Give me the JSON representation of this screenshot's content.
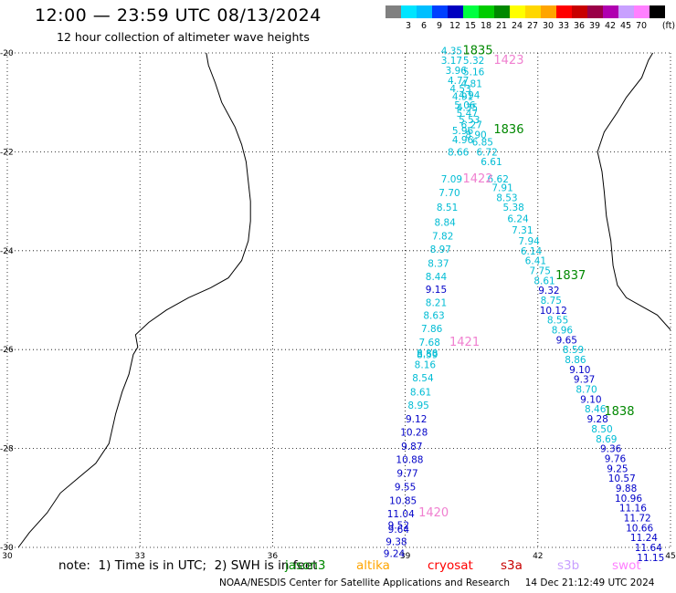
{
  "header": {
    "title": "12:00 — 23:59 UTC 08/13/2024",
    "subtitle": "12 hour collection of altimeter wave heights"
  },
  "legend": {
    "unit": "(ft)",
    "bins": [
      {
        "color": "#808080",
        "label": ""
      },
      {
        "color": "#00e5ff",
        "label": "3"
      },
      {
        "color": "#00bfff",
        "label": "6"
      },
      {
        "color": "#0040ff",
        "label": "9"
      },
      {
        "color": "#0000c0",
        "label": "12"
      },
      {
        "color": "#00ff40",
        "label": "15"
      },
      {
        "color": "#00cc00",
        "label": "18"
      },
      {
        "color": "#008800",
        "label": "21"
      },
      {
        "color": "#ffff00",
        "label": "24"
      },
      {
        "color": "#ffd700",
        "label": "27"
      },
      {
        "color": "#ffa500",
        "label": "30"
      },
      {
        "color": "#ff0000",
        "label": "33"
      },
      {
        "color": "#c80000",
        "label": "36"
      },
      {
        "color": "#9a0048",
        "label": "39"
      },
      {
        "color": "#b000b0",
        "label": "42"
      },
      {
        "color": "#c8a0ff",
        "label": "45"
      },
      {
        "color": "#ff80ff",
        "label": "70"
      },
      {
        "color": "#000000",
        "label": ""
      }
    ]
  },
  "axes": {
    "lat_labels": [
      "-20",
      "-22",
      "-24",
      "-26",
      "-28",
      "-30"
    ],
    "lon_labels": [
      "30",
      "33",
      "36",
      "39",
      "42",
      "45"
    ]
  },
  "colors": {
    "cyan": "#00bcd4",
    "blue": "#0000c8",
    "green": "#008800",
    "pink": "#f080d0"
  },
  "pass_labels": [
    {
      "text": "1835",
      "lon": 40.3,
      "lat": -19.95,
      "color": "green"
    },
    {
      "text": "1423",
      "lon": 41.0,
      "lat": -20.15,
      "color": "pink"
    },
    {
      "text": "1836",
      "lon": 41.0,
      "lat": -21.55,
      "color": "green"
    },
    {
      "text": "1422",
      "lon": 40.3,
      "lat": -22.55,
      "color": "pink"
    },
    {
      "text": "1837",
      "lon": 42.4,
      "lat": -24.5,
      "color": "green"
    },
    {
      "text": "1421",
      "lon": 40.0,
      "lat": -25.85,
      "color": "pink"
    },
    {
      "text": "1838",
      "lon": 43.5,
      "lat": -27.25,
      "color": "green"
    },
    {
      "text": "1420",
      "lon": 39.3,
      "lat": -29.3,
      "color": "pink"
    }
  ],
  "swh_values": [
    {
      "text": "4.35",
      "lon": 40.05,
      "lat": -19.95,
      "color": "cyan"
    },
    {
      "text": "3.17",
      "lon": 40.05,
      "lat": -20.15,
      "color": "cyan"
    },
    {
      "text": "5.32",
      "lon": 40.55,
      "lat": -20.15,
      "color": "cyan"
    },
    {
      "text": "3.96",
      "lon": 40.15,
      "lat": -20.35,
      "color": "cyan"
    },
    {
      "text": "5.16",
      "lon": 40.55,
      "lat": -20.38,
      "color": "cyan"
    },
    {
      "text": "4.77",
      "lon": 40.2,
      "lat": -20.55,
      "color": "cyan"
    },
    {
      "text": "4.81",
      "lon": 40.5,
      "lat": -20.62,
      "color": "cyan"
    },
    {
      "text": "4.53",
      "lon": 40.25,
      "lat": -20.72,
      "color": "cyan"
    },
    {
      "text": "4.94",
      "lon": 40.45,
      "lat": -20.85,
      "color": "cyan"
    },
    {
      "text": "4.91",
      "lon": 40.3,
      "lat": -20.88,
      "color": "cyan"
    },
    {
      "text": "5.06",
      "lon": 40.35,
      "lat": -21.05,
      "color": "cyan"
    },
    {
      "text": "4.35",
      "lon": 40.4,
      "lat": -21.1,
      "color": "cyan"
    },
    {
      "text": "5.47",
      "lon": 40.4,
      "lat": -21.22,
      "color": "cyan"
    },
    {
      "text": "5.53",
      "lon": 40.45,
      "lat": -21.35,
      "color": "cyan"
    },
    {
      "text": "6.27",
      "lon": 40.5,
      "lat": -21.45,
      "color": "cyan"
    },
    {
      "text": "5.96",
      "lon": 40.3,
      "lat": -21.57,
      "color": "cyan"
    },
    {
      "text": "8.90",
      "lon": 40.6,
      "lat": -21.65,
      "color": "cyan"
    },
    {
      "text": "4.96",
      "lon": 40.3,
      "lat": -21.75,
      "color": "cyan"
    },
    {
      "text": "6.85",
      "lon": 40.75,
      "lat": -21.8,
      "color": "cyan"
    },
    {
      "text": "8.66",
      "lon": 40.2,
      "lat": -22.0,
      "color": "cyan"
    },
    {
      "text": "6.72",
      "lon": 40.85,
      "lat": -22.0,
      "color": "cyan"
    },
    {
      "text": "6.61",
      "lon": 40.95,
      "lat": -22.2,
      "color": "cyan"
    },
    {
      "text": "7.09",
      "lon": 40.05,
      "lat": -22.55,
      "color": "cyan"
    },
    {
      "text": "6.62",
      "lon": 41.1,
      "lat": -22.55,
      "color": "cyan"
    },
    {
      "text": "7.70",
      "lon": 40.0,
      "lat": -22.82,
      "color": "cyan"
    },
    {
      "text": "7.91",
      "lon": 41.2,
      "lat": -22.72,
      "color": "cyan"
    },
    {
      "text": "8.53",
      "lon": 41.3,
      "lat": -22.92,
      "color": "cyan"
    },
    {
      "text": "8.51",
      "lon": 39.95,
      "lat": -23.12,
      "color": "cyan"
    },
    {
      "text": "5.38",
      "lon": 41.45,
      "lat": -23.12,
      "color": "cyan"
    },
    {
      "text": "8.84",
      "lon": 39.9,
      "lat": -23.42,
      "color": "cyan"
    },
    {
      "text": "6.24",
      "lon": 41.55,
      "lat": -23.35,
      "color": "cyan"
    },
    {
      "text": "7.31",
      "lon": 41.65,
      "lat": -23.58,
      "color": "cyan"
    },
    {
      "text": "7.82",
      "lon": 39.85,
      "lat": -23.7,
      "color": "cyan"
    },
    {
      "text": "7.94",
      "lon": 41.8,
      "lat": -23.8,
      "color": "cyan"
    },
    {
      "text": "8.97",
      "lon": 39.8,
      "lat": -23.97,
      "color": "cyan"
    },
    {
      "text": "6.14",
      "lon": 41.85,
      "lat": -24.0,
      "color": "cyan"
    },
    {
      "text": "6.41",
      "lon": 41.95,
      "lat": -24.2,
      "color": "cyan"
    },
    {
      "text": "8.37",
      "lon": 39.75,
      "lat": -24.25,
      "color": "cyan"
    },
    {
      "text": "7.75",
      "lon": 42.05,
      "lat": -24.4,
      "color": "cyan"
    },
    {
      "text": "8.44",
      "lon": 39.7,
      "lat": -24.52,
      "color": "cyan"
    },
    {
      "text": "8.61",
      "lon": 42.15,
      "lat": -24.6,
      "color": "cyan"
    },
    {
      "text": "9.15",
      "lon": 39.7,
      "lat": -24.78,
      "color": "blue"
    },
    {
      "text": "9.32",
      "lon": 42.25,
      "lat": -24.8,
      "color": "blue"
    },
    {
      "text": "8.21",
      "lon": 39.7,
      "lat": -25.05,
      "color": "cyan"
    },
    {
      "text": "8.75",
      "lon": 42.3,
      "lat": -25.0,
      "color": "cyan"
    },
    {
      "text": "10.12",
      "lon": 42.35,
      "lat": -25.2,
      "color": "blue"
    },
    {
      "text": "8.63",
      "lon": 39.65,
      "lat": -25.3,
      "color": "cyan"
    },
    {
      "text": "8.55",
      "lon": 42.45,
      "lat": -25.4,
      "color": "cyan"
    },
    {
      "text": "7.86",
      "lon": 39.6,
      "lat": -25.57,
      "color": "cyan"
    },
    {
      "text": "8.96",
      "lon": 42.55,
      "lat": -25.6,
      "color": "cyan"
    },
    {
      "text": "7.68",
      "lon": 39.55,
      "lat": -25.85,
      "color": "cyan"
    },
    {
      "text": "9.65",
      "lon": 42.65,
      "lat": -25.8,
      "color": "blue"
    },
    {
      "text": "8.59",
      "lon": 42.8,
      "lat": -26.0,
      "color": "cyan"
    },
    {
      "text": "8.88",
      "lon": 39.5,
      "lat": -26.07,
      "color": "cyan"
    },
    {
      "text": "8.59",
      "lon": 39.5,
      "lat": -26.1,
      "color": "cyan"
    },
    {
      "text": "8.86",
      "lon": 42.85,
      "lat": -26.2,
      "color": "cyan"
    },
    {
      "text": "8.16",
      "lon": 39.45,
      "lat": -26.3,
      "color": "cyan"
    },
    {
      "text": "9.10",
      "lon": 42.95,
      "lat": -26.4,
      "color": "blue"
    },
    {
      "text": "8.54",
      "lon": 39.4,
      "lat": -26.57,
      "color": "cyan"
    },
    {
      "text": "9.37",
      "lon": 43.05,
      "lat": -26.6,
      "color": "blue"
    },
    {
      "text": "8.61",
      "lon": 39.35,
      "lat": -26.85,
      "color": "cyan"
    },
    {
      "text": "8.70",
      "lon": 43.1,
      "lat": -26.8,
      "color": "cyan"
    },
    {
      "text": "9.10",
      "lon": 43.2,
      "lat": -27.0,
      "color": "blue"
    },
    {
      "text": "8.95",
      "lon": 39.3,
      "lat": -27.12,
      "color": "cyan"
    },
    {
      "text": "8.46",
      "lon": 43.3,
      "lat": -27.2,
      "color": "cyan"
    },
    {
      "text": "9.12",
      "lon": 39.25,
      "lat": -27.4,
      "color": "blue"
    },
    {
      "text": "9.28",
      "lon": 43.35,
      "lat": -27.4,
      "color": "blue"
    },
    {
      "text": "8.50",
      "lon": 43.45,
      "lat": -27.6,
      "color": "cyan"
    },
    {
      "text": "10.28",
      "lon": 39.2,
      "lat": -27.67,
      "color": "blue"
    },
    {
      "text": "8.69",
      "lon": 43.55,
      "lat": -27.8,
      "color": "cyan"
    },
    {
      "text": "9.87",
      "lon": 39.15,
      "lat": -27.95,
      "color": "blue"
    },
    {
      "text": "9.36",
      "lon": 43.65,
      "lat": -28.0,
      "color": "blue"
    },
    {
      "text": "10.88",
      "lon": 39.1,
      "lat": -28.22,
      "color": "blue"
    },
    {
      "text": "9.76",
      "lon": 43.75,
      "lat": -28.2,
      "color": "blue"
    },
    {
      "text": "9.25",
      "lon": 43.8,
      "lat": -28.4,
      "color": "blue"
    },
    {
      "text": "9.77",
      "lon": 39.05,
      "lat": -28.5,
      "color": "blue"
    },
    {
      "text": "10.57",
      "lon": 43.9,
      "lat": -28.6,
      "color": "blue"
    },
    {
      "text": "9.55",
      "lon": 39.0,
      "lat": -28.77,
      "color": "blue"
    },
    {
      "text": "9.88",
      "lon": 44.0,
      "lat": -28.8,
      "color": "blue"
    },
    {
      "text": "10.96",
      "lon": 44.05,
      "lat": -29.0,
      "color": "blue"
    },
    {
      "text": "10.85",
      "lon": 38.95,
      "lat": -29.05,
      "color": "blue"
    },
    {
      "text": "11.16",
      "lon": 44.15,
      "lat": -29.2,
      "color": "blue"
    },
    {
      "text": "11.04",
      "lon": 38.9,
      "lat": -29.32,
      "color": "blue"
    },
    {
      "text": "11.72",
      "lon": 44.25,
      "lat": -29.4,
      "color": "blue"
    },
    {
      "text": "9.52",
      "lon": 38.85,
      "lat": -29.55,
      "color": "blue"
    },
    {
      "text": "10.66",
      "lon": 44.3,
      "lat": -29.6,
      "color": "blue"
    },
    {
      "text": "9.64",
      "lon": 38.85,
      "lat": -29.63,
      "color": "blue"
    },
    {
      "text": "9.38",
      "lon": 38.8,
      "lat": -29.88,
      "color": "blue"
    },
    {
      "text": "11.24",
      "lon": 44.4,
      "lat": -29.8,
      "color": "blue"
    },
    {
      "text": "9.24",
      "lon": 38.75,
      "lat": -30.12,
      "color": "blue"
    },
    {
      "text": "11.64",
      "lon": 44.5,
      "lat": -30.0,
      "color": "blue"
    },
    {
      "text": "11.15",
      "lon": 44.55,
      "lat": -30.2,
      "color": "blue"
    }
  ],
  "note": {
    "text": "note:  1) Time is in UTC;  2) SWH is in feet",
    "satellites": [
      {
        "name": "jason3",
        "color": "#008800"
      },
      {
        "name": "altika",
        "color": "#ffa500"
      },
      {
        "name": "cryosat",
        "color": "#ff0000"
      },
      {
        "name": "s3a",
        "color": "#c80000"
      },
      {
        "name": "s3b",
        "color": "#c8a0ff"
      },
      {
        "name": "swot",
        "color": "#ff80ff"
      }
    ]
  },
  "footer": {
    "credit": "NOAA/NESDIS Center for Satellite Applications and Research",
    "timestamp": "14 Dec 21:12:49 UTC 2024"
  }
}
